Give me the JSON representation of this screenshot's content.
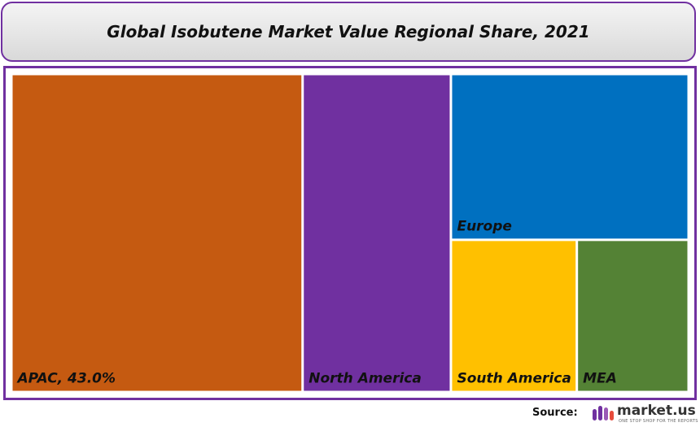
{
  "header": {
    "title": "Global Isobutene Market Value Regional Share, 2021"
  },
  "chart_data": {
    "type": "treemap",
    "title": "Global Isobutene Market Value Regional Share, 2021",
    "items": [
      {
        "label": "APAC, 43.0%",
        "region": "APAC",
        "share": 43.0,
        "color": "#c55a11"
      },
      {
        "label": "North America",
        "region": "North America",
        "share": 21.9,
        "color": "#7030a0"
      },
      {
        "label": "Europe",
        "region": "Europe",
        "share": 18.3,
        "color": "#0070c0"
      },
      {
        "label": "South America",
        "region": "South America",
        "share": 8.9,
        "color": "#ffc000"
      },
      {
        "label": "MEA",
        "region": "MEA",
        "share": 7.9,
        "color": "#548235"
      }
    ]
  },
  "footer": {
    "source_label": "Source:",
    "brand_name": "market.us",
    "brand_tagline": "ONE STOP SHOP FOR THE REPORTS"
  },
  "colors": {
    "frame": "#7030a0",
    "brand_accent": "#7030a0"
  }
}
